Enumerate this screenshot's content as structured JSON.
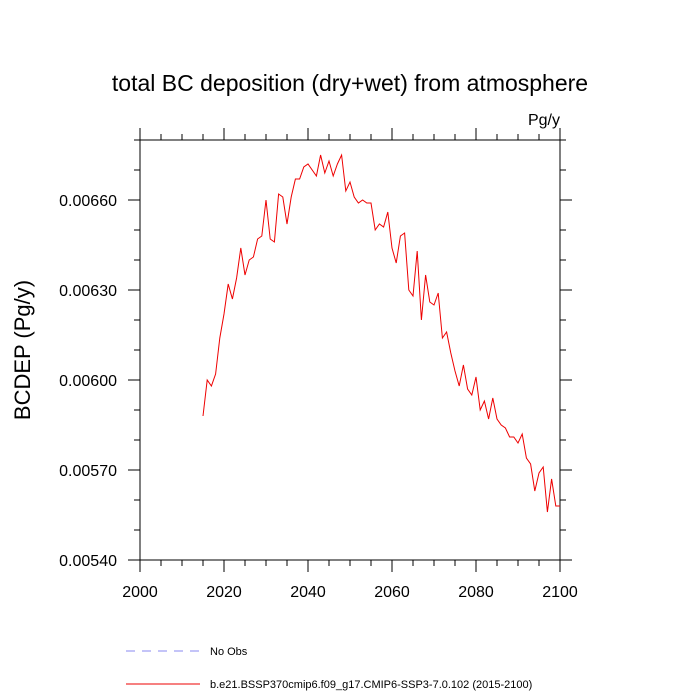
{
  "chart_data": {
    "type": "line",
    "title": "total BC deposition (dry+wet) from atmosphere",
    "units_label": "Pg/y",
    "ylabel": "BCDEP  (Pg/y)",
    "xlabel": "",
    "xlim": [
      2000,
      2100
    ],
    "ylim": [
      0.0054,
      0.0068
    ],
    "x_ticks": [
      2000,
      2020,
      2040,
      2060,
      2080,
      2100
    ],
    "x_tick_labels": [
      "2000",
      "2020",
      "2040",
      "2060",
      "2080",
      "2100"
    ],
    "y_ticks": [
      0.0054,
      0.0057,
      0.006,
      0.0063,
      0.0066
    ],
    "y_tick_labels": [
      "0.00540",
      "0.00570",
      "0.00600",
      "0.00630",
      "0.00660"
    ],
    "grid": false,
    "legend_position": "bottom",
    "legend": [
      {
        "name": "No Obs",
        "color": "#8a8af0",
        "style": "dashed"
      },
      {
        "name": "b.e21.BSSP370cmip6.f09_g17.CMIP6-SSP3-7.0.102 (2015-2100)",
        "color": "#ee0000",
        "style": "solid"
      }
    ],
    "series": [
      {
        "name": "b.e21.BSSP370cmip6.f09_g17.CMIP6-SSP3-7.0.102 (2015-2100)",
        "color": "#ee0000",
        "x": [
          2015,
          2016,
          2017,
          2018,
          2019,
          2020,
          2021,
          2022,
          2023,
          2024,
          2025,
          2026,
          2027,
          2028,
          2029,
          2030,
          2031,
          2032,
          2033,
          2034,
          2035,
          2036,
          2037,
          2038,
          2039,
          2040,
          2041,
          2042,
          2043,
          2044,
          2045,
          2046,
          2047,
          2048,
          2049,
          2050,
          2051,
          2052,
          2053,
          2054,
          2055,
          2056,
          2057,
          2058,
          2059,
          2060,
          2061,
          2062,
          2063,
          2064,
          2065,
          2066,
          2067,
          2068,
          2069,
          2070,
          2071,
          2072,
          2073,
          2074,
          2075,
          2076,
          2077,
          2078,
          2079,
          2080,
          2081,
          2082,
          2083,
          2084,
          2085,
          2086,
          2087,
          2088,
          2089,
          2090,
          2091,
          2092,
          2093,
          2094,
          2095,
          2096,
          2097,
          2098,
          2099,
          2100
        ],
        "values": [
          0.00588,
          0.006,
          0.00598,
          0.00602,
          0.00614,
          0.00622,
          0.00632,
          0.00627,
          0.00634,
          0.00644,
          0.00635,
          0.0064,
          0.00641,
          0.00647,
          0.00648,
          0.0066,
          0.00647,
          0.00646,
          0.00662,
          0.00661,
          0.00652,
          0.00661,
          0.00667,
          0.00667,
          0.00671,
          0.00672,
          0.0067,
          0.00668,
          0.00675,
          0.00669,
          0.00673,
          0.00668,
          0.00672,
          0.00675,
          0.00663,
          0.00666,
          0.00661,
          0.00659,
          0.0066,
          0.00659,
          0.00659,
          0.0065,
          0.00652,
          0.00651,
          0.00656,
          0.00644,
          0.00639,
          0.00648,
          0.00649,
          0.0063,
          0.00628,
          0.00643,
          0.0062,
          0.00635,
          0.00626,
          0.00625,
          0.00629,
          0.00614,
          0.00616,
          0.00609,
          0.00603,
          0.00598,
          0.00605,
          0.00597,
          0.00595,
          0.00601,
          0.0059,
          0.00593,
          0.00587,
          0.00594,
          0.00587,
          0.00585,
          0.00584,
          0.00581,
          0.00581,
          0.00579,
          0.00582,
          0.00574,
          0.00572,
          0.00563,
          0.00569,
          0.00571,
          0.00556,
          0.00567,
          0.00558,
          0.00558
        ]
      }
    ]
  }
}
